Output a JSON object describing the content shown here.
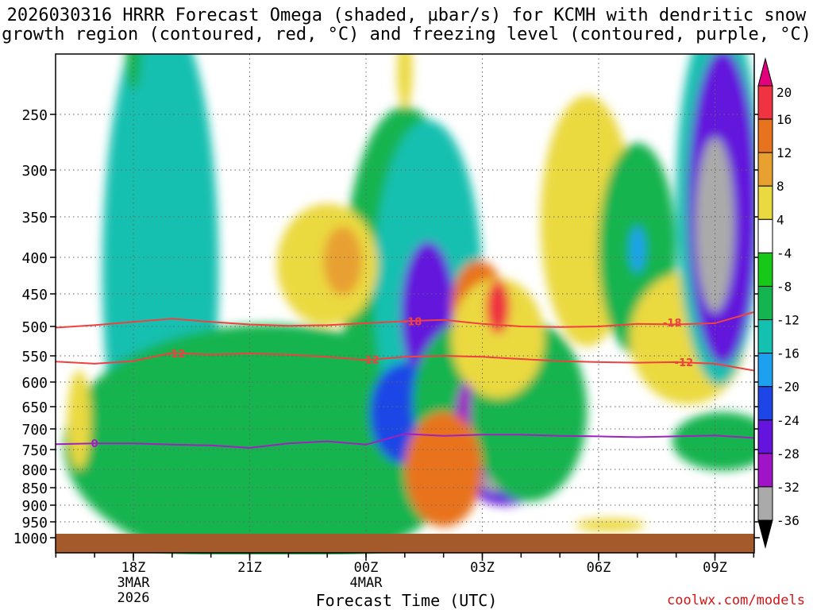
{
  "title": {
    "line1": "2026030316 HRRR Forecast Omega (shaded, µbar/s) for KCMH with dendritic snow",
    "line2": "growth region (contoured, red, °C) and freezing level (contoured, purple, °C)"
  },
  "x_axis_label": "Forecast Time (UTC)",
  "credit": "coolwx.com/models",
  "chart_data": {
    "type": "heatmap",
    "title": "2026030316 HRRR Forecast Omega (shaded, µbar/s) for KCMH with dendritic snow growth region (contoured, red, °C) and freezing level (contoured, purple, °C)",
    "xlabel": "Forecast Time (UTC)",
    "ylabel": "",
    "y_ticks": [
      250,
      300,
      350,
      400,
      450,
      500,
      550,
      600,
      650,
      700,
      750,
      800,
      850,
      900,
      950,
      1000
    ],
    "x_ticks": [
      {
        "hour": 2,
        "lines": [
          "18Z",
          "3MAR",
          "2026"
        ]
      },
      {
        "hour": 5,
        "lines": [
          "21Z"
        ]
      },
      {
        "hour": 8,
        "lines": [
          "00Z",
          "4MAR"
        ]
      },
      {
        "hour": 11,
        "lines": [
          "03Z"
        ]
      },
      {
        "hour": 14,
        "lines": [
          "06Z"
        ]
      },
      {
        "hour": 17,
        "lines": [
          "09Z"
        ]
      }
    ],
    "x_range_hours": [
      0,
      18
    ],
    "y_range_hpa": [
      200,
      1013
    ],
    "grid": true,
    "colorbar": {
      "levels": [
        20,
        16,
        12,
        8,
        4,
        -4,
        -8,
        -12,
        -16,
        -20,
        -24,
        -28,
        -32,
        -36
      ],
      "colors": [
        "#e4007c",
        "#ef3340",
        "#e8731e",
        "#e8a030",
        "#ebd940",
        "#ffffff",
        "#18c818",
        "#14b450",
        "#14c0b0",
        "#1ea0f0",
        "#1e46e6",
        "#6414dc",
        "#a014c8",
        "#aaaaaa",
        "#000000"
      ]
    },
    "contours": [
      {
        "name": "-18",
        "color": "#f04040",
        "points": [
          [
            0,
            502
          ],
          [
            1,
            498
          ],
          [
            2,
            493
          ],
          [
            3,
            488
          ],
          [
            4,
            493
          ],
          [
            5,
            497
          ],
          [
            6,
            499
          ],
          [
            7,
            498
          ],
          [
            8,
            495
          ],
          [
            9,
            492
          ],
          [
            10,
            490
          ],
          [
            11,
            496
          ],
          [
            12,
            500
          ],
          [
            13,
            501
          ],
          [
            14,
            500
          ],
          [
            15,
            496
          ],
          [
            16,
            497
          ],
          [
            17,
            495
          ],
          [
            18,
            478
          ]
        ]
      },
      {
        "name": "-12",
        "color": "#f04040",
        "points": [
          [
            0,
            561
          ],
          [
            1,
            565
          ],
          [
            2,
            560
          ],
          [
            3,
            545
          ],
          [
            4,
            548
          ],
          [
            5,
            546
          ],
          [
            6,
            548
          ],
          [
            7,
            552
          ],
          [
            8,
            558
          ],
          [
            9,
            552
          ],
          [
            10,
            550
          ],
          [
            11,
            552
          ],
          [
            12,
            556
          ],
          [
            13,
            560
          ],
          [
            14,
            562
          ],
          [
            15,
            563
          ],
          [
            16,
            562
          ],
          [
            17,
            565
          ],
          [
            18,
            578
          ]
        ]
      },
      {
        "name": "0",
        "color": "#a020c0",
        "points": [
          [
            0,
            737
          ],
          [
            1,
            735
          ],
          [
            2,
            735
          ],
          [
            3,
            738
          ],
          [
            4,
            740
          ],
          [
            5,
            746
          ],
          [
            6,
            735
          ],
          [
            7,
            730
          ],
          [
            8,
            738
          ],
          [
            9,
            712
          ],
          [
            10,
            717
          ],
          [
            11,
            714
          ],
          [
            12,
            714
          ],
          [
            13,
            717
          ],
          [
            14,
            718
          ],
          [
            15,
            720
          ],
          [
            16,
            718
          ],
          [
            17,
            716
          ],
          [
            18,
            722
          ]
        ]
      }
    ],
    "contour_labels": [
      {
        "text": "-18",
        "hour": 9.2,
        "hpa": 492,
        "color": "#f04040"
      },
      {
        "text": "-18",
        "hour": 15.9,
        "hpa": 494,
        "color": "#f04040"
      },
      {
        "text": "-12",
        "hour": 3.1,
        "hpa": 546,
        "color": "#f04040"
      },
      {
        "text": "-12",
        "hour": 8.1,
        "hpa": 557,
        "color": "#f04040"
      },
      {
        "text": "-12",
        "hour": 16.2,
        "hpa": 562,
        "color": "#f04040"
      },
      {
        "text": "0",
        "hour": 1.0,
        "hpa": 735,
        "color": "#a020c0"
      }
    ],
    "omega_features": [
      {
        "hour": 2.7,
        "hpa": 420,
        "rx": 1.5,
        "ry": 330,
        "omega": -14
      },
      {
        "hour": 2.4,
        "hpa": 350,
        "rx": 0.5,
        "ry": 120,
        "omega": -16
      },
      {
        "hour": 4.4,
        "hpa": 820,
        "rx": 3.2,
        "ry": 180,
        "omega": -20
      },
      {
        "hour": 5.3,
        "hpa": 825,
        "rx": 0.9,
        "ry": 60,
        "omega": -26
      },
      {
        "hour": 5.5,
        "hpa": 740,
        "rx": 5.3,
        "ry": 280,
        "omega": -9
      },
      {
        "hour": 9.0,
        "hpa": 450,
        "rx": 1.6,
        "ry": 250,
        "omega": -12
      },
      {
        "hour": 9.6,
        "hpa": 440,
        "rx": 1.4,
        "ry": 220,
        "omega": -16
      },
      {
        "hour": 9.6,
        "hpa": 480,
        "rx": 0.7,
        "ry": 110,
        "omega": -28
      },
      {
        "hour": 9.0,
        "hpa": 665,
        "rx": 0.9,
        "ry": 110,
        "omega": -22
      },
      {
        "hour": 10.8,
        "hpa": 640,
        "rx": 1.6,
        "ry": 170,
        "omega": -12
      },
      {
        "hour": 10.8,
        "hpa": 675,
        "rx": 0.5,
        "ry": 95,
        "omega": -32
      },
      {
        "hour": 11.6,
        "hpa": 810,
        "rx": 1.1,
        "ry": 85,
        "omega": -26
      },
      {
        "hour": 11.3,
        "hpa": 835,
        "rx": 0.3,
        "ry": 28,
        "omega": -34
      },
      {
        "hour": 12.2,
        "hpa": 660,
        "rx": 1.5,
        "ry": 190,
        "omega": -12
      },
      {
        "hour": 10.0,
        "hpa": 800,
        "rx": 1.0,
        "ry": 150,
        "omega": 14
      },
      {
        "hour": 10.9,
        "hpa": 470,
        "rx": 0.7,
        "ry": 70,
        "omega": 12
      },
      {
        "hour": 11.4,
        "hpa": 520,
        "rx": 1.2,
        "ry": 100,
        "omega": 7
      },
      {
        "hour": 7.0,
        "hpa": 410,
        "rx": 1.3,
        "ry": 80,
        "omega": 7
      },
      {
        "hour": 9.0,
        "hpa": 215,
        "rx": 0.2,
        "ry": 30,
        "omega": 5
      },
      {
        "hour": 13.7,
        "hpa": 355,
        "rx": 1.2,
        "ry": 140,
        "omega": 6
      },
      {
        "hour": 14.7,
        "hpa": 390,
        "rx": 0.4,
        "ry": 50,
        "omega": 12
      },
      {
        "hour": 15.0,
        "hpa": 390,
        "rx": 1.0,
        "ry": 130,
        "omega": -10
      },
      {
        "hour": 15.0,
        "hpa": 390,
        "rx": 0.2,
        "ry": 30,
        "omega": -20
      },
      {
        "hour": 16.3,
        "hpa": 520,
        "rx": 1.5,
        "ry": 110,
        "omega": 7
      },
      {
        "hour": 17.1,
        "hpa": 330,
        "rx": 1.1,
        "ry": 200,
        "omega": -14
      },
      {
        "hour": 17.2,
        "hpa": 340,
        "rx": 0.9,
        "ry": 170,
        "omega": -28
      },
      {
        "hour": 17.0,
        "hpa": 360,
        "rx": 0.5,
        "ry": 100,
        "omega": -34
      },
      {
        "hour": 17.2,
        "hpa": 730,
        "rx": 1.3,
        "ry": 70,
        "omega": -9
      },
      {
        "hour": 0.6,
        "hpa": 680,
        "rx": 0.3,
        "ry": 110,
        "omega": 6
      },
      {
        "hour": 7.4,
        "hpa": 405,
        "rx": 0.5,
        "ry": 45,
        "omega": 11
      },
      {
        "hour": 14.3,
        "hpa": 960,
        "rx": 0.9,
        "ry": 20,
        "omega": 5
      },
      {
        "hour": 2.0,
        "hpa": 200,
        "rx": 0.2,
        "ry": 30,
        "omega": -9
      },
      {
        "hour": 11.4,
        "hpa": 470,
        "rx": 0.3,
        "ry": 40,
        "omega": 17
      }
    ]
  },
  "colors": {
    "grid": "#666666",
    "ground": "#a45a2a",
    "axes": "#000000",
    "credit": "#d21414"
  }
}
